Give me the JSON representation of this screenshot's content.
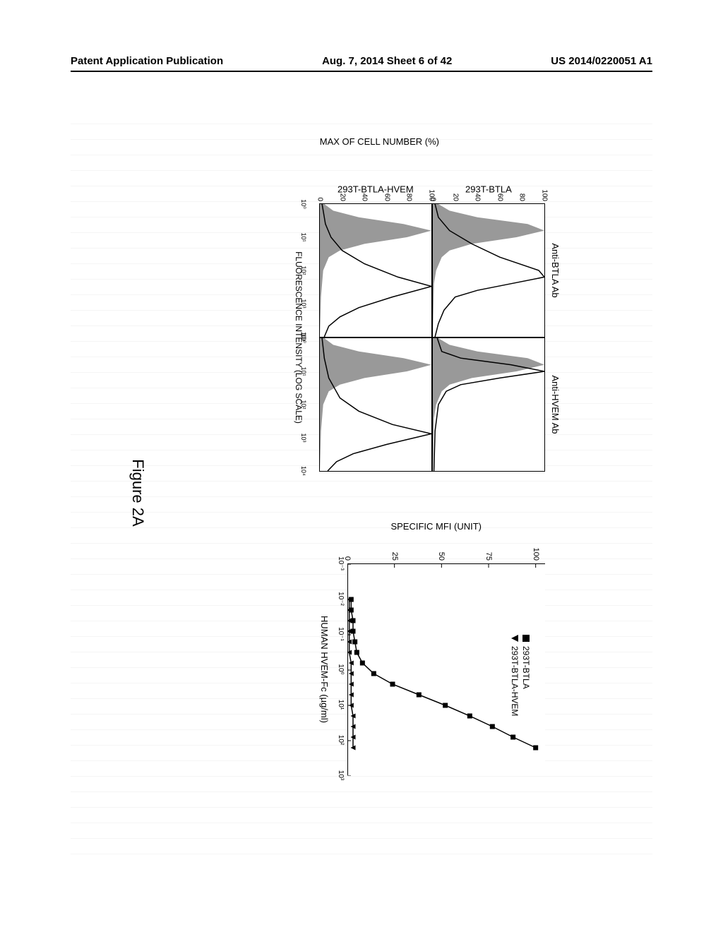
{
  "header": {
    "left": "Patent Application Publication",
    "center": "Aug. 7, 2014  Sheet 6 of 42",
    "right": "US 2014/0220051 A1"
  },
  "figure_label": "Figure 2A",
  "histograms": {
    "col_headers": [
      "Anti-BTLA Ab",
      "Anti-HVEM Ab"
    ],
    "row_headers": [
      "293T-BTLA",
      "293T-BTLA-HVEM"
    ],
    "y_axis_label": "MAX OF CELL NUMBER (%)",
    "x_axis_label": "FLUORESCENCE INTENSITY (LOG SCALE)",
    "y_ticks": [
      0,
      20,
      40,
      60,
      80,
      100
    ],
    "x_tick_labels": [
      "10⁰",
      "10¹",
      "10²",
      "10³",
      "10⁴"
    ],
    "panels": {
      "p00": {
        "filled": [
          [
            0,
            5
          ],
          [
            5,
            15
          ],
          [
            10,
            40
          ],
          [
            15,
            85
          ],
          [
            20,
            100
          ],
          [
            25,
            75
          ],
          [
            30,
            35
          ],
          [
            35,
            15
          ],
          [
            40,
            8
          ],
          [
            50,
            3
          ],
          [
            60,
            1
          ],
          [
            100,
            0
          ]
        ],
        "line": [
          [
            0,
            2
          ],
          [
            10,
            5
          ],
          [
            20,
            15
          ],
          [
            30,
            35
          ],
          [
            40,
            60
          ],
          [
            50,
            95
          ],
          [
            55,
            100
          ],
          [
            60,
            70
          ],
          [
            65,
            40
          ],
          [
            70,
            20
          ],
          [
            80,
            10
          ],
          [
            90,
            5
          ],
          [
            100,
            2
          ]
        ]
      },
      "p01": {
        "filled": [
          [
            0,
            5
          ],
          [
            5,
            15
          ],
          [
            10,
            40
          ],
          [
            15,
            85
          ],
          [
            20,
            100
          ],
          [
            25,
            75
          ],
          [
            30,
            35
          ],
          [
            35,
            15
          ],
          [
            40,
            8
          ],
          [
            50,
            3
          ],
          [
            60,
            1
          ],
          [
            100,
            0
          ]
        ],
        "line": [
          [
            0,
            4
          ],
          [
            10,
            8
          ],
          [
            15,
            25
          ],
          [
            20,
            70
          ],
          [
            25,
            100
          ],
          [
            30,
            60
          ],
          [
            35,
            25
          ],
          [
            40,
            12
          ],
          [
            50,
            5
          ],
          [
            70,
            2
          ],
          [
            100,
            1
          ]
        ]
      },
      "p10": {
        "filled": [
          [
            0,
            4
          ],
          [
            5,
            12
          ],
          [
            10,
            35
          ],
          [
            15,
            75
          ],
          [
            20,
            100
          ],
          [
            25,
            78
          ],
          [
            30,
            40
          ],
          [
            35,
            18
          ],
          [
            40,
            8
          ],
          [
            50,
            3
          ],
          [
            70,
            1
          ],
          [
            100,
            0
          ]
        ],
        "line": [
          [
            0,
            2
          ],
          [
            15,
            5
          ],
          [
            25,
            10
          ],
          [
            35,
            20
          ],
          [
            45,
            40
          ],
          [
            55,
            70
          ],
          [
            62,
            100
          ],
          [
            70,
            65
          ],
          [
            78,
            35
          ],
          [
            85,
            18
          ],
          [
            92,
            8
          ],
          [
            100,
            4
          ]
        ]
      },
      "p11": {
        "filled": [
          [
            0,
            4
          ],
          [
            5,
            12
          ],
          [
            10,
            35
          ],
          [
            15,
            75
          ],
          [
            20,
            100
          ],
          [
            25,
            78
          ],
          [
            30,
            40
          ],
          [
            35,
            18
          ],
          [
            40,
            8
          ],
          [
            50,
            3
          ],
          [
            70,
            1
          ],
          [
            100,
            0
          ]
        ],
        "line": [
          [
            0,
            2
          ],
          [
            15,
            4
          ],
          [
            30,
            8
          ],
          [
            45,
            18
          ],
          [
            55,
            35
          ],
          [
            65,
            65
          ],
          [
            72,
            100
          ],
          [
            80,
            60
          ],
          [
            87,
            30
          ],
          [
            93,
            15
          ],
          [
            100,
            7
          ]
        ]
      }
    },
    "fill_color": "#999999",
    "line_color": "#000000",
    "line_width": 1.5
  },
  "scatter": {
    "y_axis_label": "SPECIFIC MFI (UNIT)",
    "x_axis_label": "HUMAN HVEM-Fc (µg/ml)",
    "y_ticks": [
      0,
      25,
      50,
      75,
      100
    ],
    "y_lim": [
      0,
      105
    ],
    "x_tick_labels": [
      "10⁻³",
      "10⁻²",
      "10⁻¹",
      "10⁰",
      "10¹",
      "10²",
      "10³"
    ],
    "x_log_min": -3,
    "x_log_max": 3,
    "legend": [
      {
        "marker": "square",
        "label": "293T-BTLA"
      },
      {
        "marker": "triangle",
        "label": "293T-BTLA-HVEM"
      }
    ],
    "series_square": [
      [
        -2,
        2
      ],
      [
        -1.7,
        2
      ],
      [
        -1.4,
        3
      ],
      [
        -1.1,
        3
      ],
      [
        -0.8,
        4
      ],
      [
        -0.5,
        5
      ],
      [
        -0.2,
        8
      ],
      [
        0.1,
        14
      ],
      [
        0.4,
        24
      ],
      [
        0.7,
        38
      ],
      [
        1.0,
        52
      ],
      [
        1.3,
        65
      ],
      [
        1.6,
        77
      ],
      [
        1.9,
        88
      ],
      [
        2.2,
        100
      ]
    ],
    "series_triangle": [
      [
        -2,
        1
      ],
      [
        -1.7,
        1
      ],
      [
        -1.4,
        1
      ],
      [
        -1.1,
        1
      ],
      [
        -0.8,
        1
      ],
      [
        -0.5,
        1
      ],
      [
        -0.2,
        2
      ],
      [
        0.1,
        2
      ],
      [
        0.4,
        2
      ],
      [
        0.7,
        2
      ],
      [
        1.0,
        2
      ],
      [
        1.3,
        3
      ],
      [
        1.6,
        3
      ],
      [
        1.9,
        3
      ],
      [
        2.2,
        3
      ]
    ],
    "marker_color": "#000000",
    "marker_size": 7,
    "line_width": 1.5
  }
}
